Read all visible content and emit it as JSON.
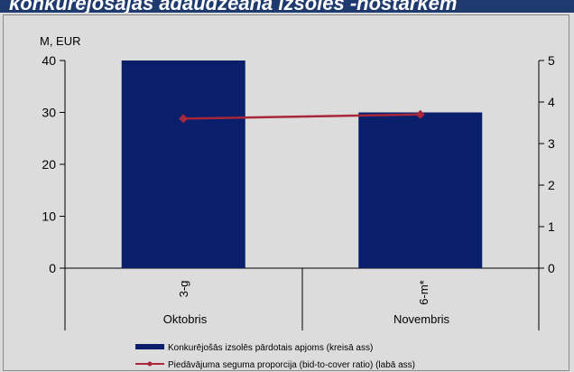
{
  "banner_text": "konkurējošajās adaudzēanā izsolēs -nostarkem",
  "chart_data": {
    "type": "bar",
    "unit_label": "M, EUR",
    "groups": [
      "Oktobris",
      "Novembris"
    ],
    "categories": [
      "3-g",
      "6-m*"
    ],
    "y_left": {
      "min": 0,
      "max": 40,
      "ticks": [
        0,
        10,
        20,
        30,
        40
      ]
    },
    "y_right": {
      "min": 0,
      "max": 5,
      "ticks": [
        0,
        1,
        2,
        3,
        4,
        5
      ]
    },
    "grid": false,
    "legend_position": "bottom",
    "series": [
      {
        "name": "Konkurējošās izsolēs pārdotais apjoms (kreisā ass)",
        "type": "bar",
        "axis": "left",
        "color": "#0a1f6b",
        "values": [
          40,
          30
        ]
      },
      {
        "name": "Piedāvājuma seguma proporcija (bid-to-cover ratio) (labā ass)",
        "type": "line",
        "axis": "right",
        "color": "#a8273a",
        "values": [
          3.6,
          3.7
        ]
      }
    ]
  }
}
